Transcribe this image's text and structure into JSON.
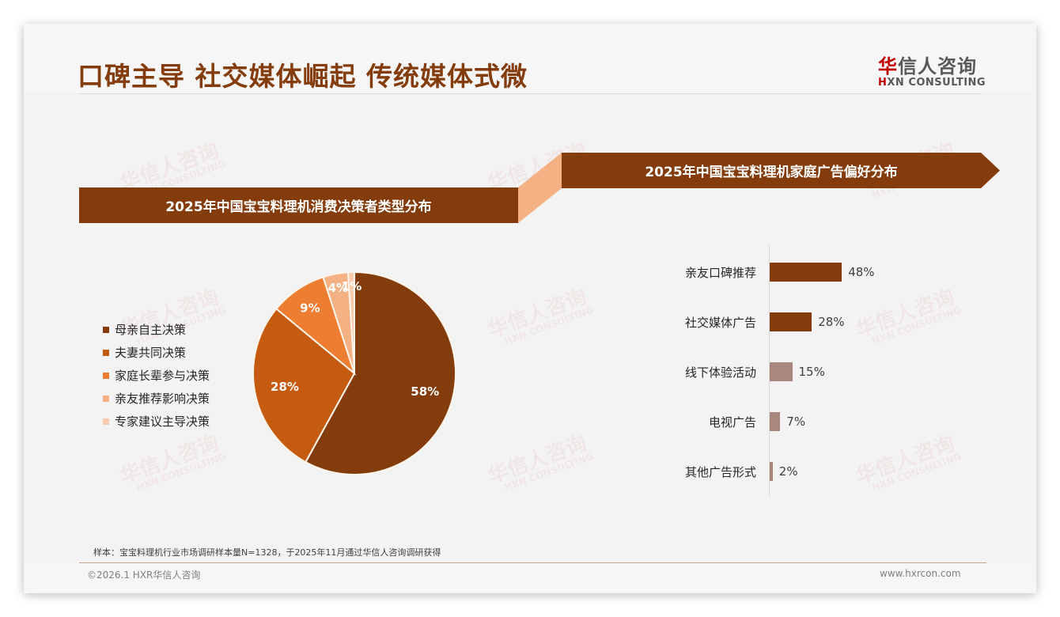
{
  "header": {
    "title": "口碑主导 社交媒体崛起 传统媒体式微",
    "logo": {
      "cn_accent": "华",
      "cn_rest": "信人咨询",
      "en_accent": "H",
      "en_rest": "XN CONSULTING"
    }
  },
  "watermark": {
    "cn": "华信人咨询",
    "en": "HXN CONSULTING"
  },
  "colors": {
    "brand": "#843c0c",
    "connector": "#f4b183",
    "pie": [
      "#843c0c",
      "#c55a11",
      "#ed7d31",
      "#f4b183",
      "#f8cbad"
    ],
    "bars_dark": "#843c0c",
    "bars_light": "#a9877e"
  },
  "left_panel": {
    "banner": "2025年中国宝宝料理机消费决策者类型分布"
  },
  "right_panel": {
    "banner": "2025年中国宝宝料理机家庭广告偏好分布"
  },
  "chart_data": [
    {
      "type": "pie",
      "title": "2025年中国宝宝料理机消费决策者类型分布",
      "categories": [
        "母亲自主决策",
        "夫妻共同决策",
        "家庭长辈参与决策",
        "亲友推荐影响决策",
        "专家建议主导决策"
      ],
      "values": [
        58,
        28,
        9,
        4,
        1
      ],
      "labels": [
        "58%",
        "28%",
        "9%",
        "4%",
        "1%"
      ],
      "legend_position": "left",
      "start_angle": "12 o'clock, clockwise"
    },
    {
      "type": "bar",
      "orientation": "horizontal",
      "title": "2025年中国宝宝料理机家庭广告偏好分布",
      "categories": [
        "亲友口碑推荐",
        "社交媒体广告",
        "线下体验活动",
        "电视广告",
        "其他广告形式"
      ],
      "values": [
        48,
        28,
        15,
        7,
        2
      ],
      "labels": [
        "48%",
        "28%",
        "15%",
        "7%",
        "2%"
      ],
      "grid": false,
      "xlim": [
        0,
        100
      ]
    }
  ],
  "footer": {
    "note": "样本：宝宝料理机行业市场调研样本量N=1328，于2025年11月通过华信人咨询调研获得",
    "copyright": "©2026.1 HXR华信人咨询",
    "website": "www.hxrcon.com"
  }
}
